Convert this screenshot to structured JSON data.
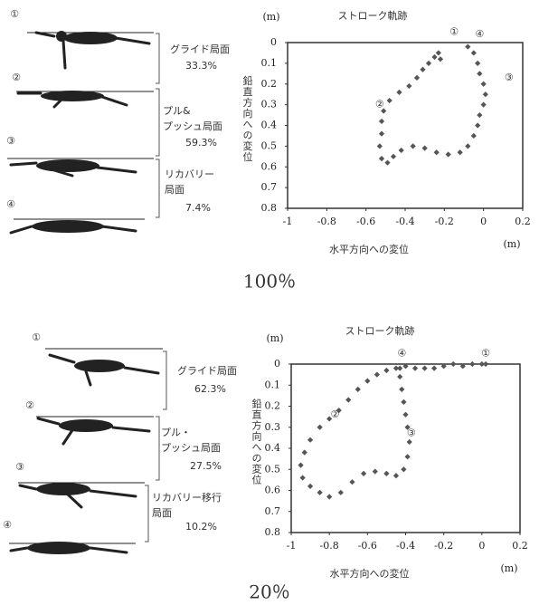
{
  "chart_data": [
    {
      "type": "scatter",
      "title": "ストローク軌跡",
      "x_label": "水平方向への変位",
      "y_label": "鉛直方向への変位",
      "x_unit": "(m)",
      "y_unit": "(m)",
      "color": "#555",
      "xlim": [
        -1,
        0.2
      ],
      "ylim": [
        0.8,
        0
      ],
      "xticks": [
        -1,
        -0.8,
        -0.6,
        -0.4,
        -0.2,
        0,
        0.2
      ],
      "yticks": [
        0,
        0.1,
        0.2,
        0.3,
        0.4,
        0.5,
        0.6,
        0.7,
        0.8
      ],
      "x": [
        -0.08,
        -0.05,
        -0.03,
        -0.02,
        0,
        0.01,
        0,
        -0.02,
        -0.03,
        -0.05,
        -0.08,
        -0.12,
        -0.18,
        -0.24,
        -0.3,
        -0.36,
        -0.42,
        -0.46,
        -0.49,
        -0.52,
        -0.53,
        -0.52,
        -0.52,
        -0.51,
        -0.48,
        -0.43,
        -0.38,
        -0.34,
        -0.31,
        -0.28,
        -0.25,
        -0.23,
        -0.22
      ],
      "y": [
        0.02,
        0.05,
        0.1,
        0.15,
        0.2,
        0.25,
        0.3,
        0.35,
        0.4,
        0.45,
        0.5,
        0.53,
        0.54,
        0.53,
        0.51,
        0.5,
        0.52,
        0.55,
        0.58,
        0.56,
        0.5,
        0.44,
        0.38,
        0.33,
        0.28,
        0.24,
        0.21,
        0.17,
        0.13,
        0.1,
        0.07,
        0.05,
        0.08
      ],
      "annotations": [
        {
          "label": "①",
          "x": -0.15,
          "y": -0.05
        },
        {
          "label": "④",
          "x": -0.02,
          "y": -0.04
        },
        {
          "label": "③",
          "x": 0.13,
          "y": 0.17
        },
        {
          "label": "②",
          "x": -0.53,
          "y": 0.3
        }
      ]
    },
    {
      "type": "scatter",
      "title": "ストローク軌跡",
      "x_label": "水平方向への変位",
      "y_label": "鉛直方向への変位",
      "x_unit": "(m)",
      "y_unit": "(m)",
      "color": "#555",
      "xlim": [
        -1,
        0.2
      ],
      "ylim": [
        0.8,
        0
      ],
      "xticks": [
        -1,
        -0.8,
        -0.6,
        -0.4,
        -0.2,
        0,
        0.2
      ],
      "yticks": [
        0,
        0.1,
        0.2,
        0.3,
        0.4,
        0.5,
        0.6,
        0.7,
        0.8
      ],
      "x": [
        0.02,
        0,
        -0.05,
        -0.1,
        -0.15,
        -0.2,
        -0.25,
        -0.3,
        -0.35,
        -0.4,
        -0.45,
        -0.5,
        -0.55,
        -0.6,
        -0.65,
        -0.7,
        -0.75,
        -0.8,
        -0.85,
        -0.9,
        -0.93,
        -0.95,
        -0.94,
        -0.9,
        -0.85,
        -0.8,
        -0.74,
        -0.68,
        -0.62,
        -0.56,
        -0.5,
        -0.45,
        -0.41,
        -0.39,
        -0.38,
        -0.39,
        -0.4,
        -0.41,
        -0.42,
        -0.43,
        -0.43
      ],
      "y": [
        0,
        0,
        0,
        0.01,
        0,
        0.01,
        0.02,
        0.02,
        0.02,
        0.01,
        0.02,
        0.03,
        0.05,
        0.08,
        0.12,
        0.17,
        0.22,
        0.26,
        0.3,
        0.36,
        0.42,
        0.48,
        0.54,
        0.58,
        0.61,
        0.63,
        0.61,
        0.56,
        0.52,
        0.51,
        0.52,
        0.53,
        0.5,
        0.44,
        0.37,
        0.3,
        0.24,
        0.18,
        0.12,
        0.06,
        0.02
      ],
      "annotations": [
        {
          "label": "①",
          "x": 0.02,
          "y": -0.05
        },
        {
          "label": "②",
          "x": -0.77,
          "y": 0.24
        },
        {
          "label": "③",
          "x": -0.37,
          "y": 0.33
        },
        {
          "label": "④",
          "x": -0.42,
          "y": -0.05
        }
      ]
    }
  ],
  "panels": [
    {
      "caption": "100％",
      "markers": [
        "①",
        "②",
        "③",
        "④"
      ],
      "phases": [
        {
          "lines": [
            "グライド局面"
          ],
          "percent": "33.3%"
        },
        {
          "lines": [
            "プル&",
            "プッシュ局面"
          ],
          "percent": "59.3%"
        },
        {
          "lines": [
            "リカバリー",
            "局面"
          ],
          "percent": "7.4%"
        }
      ]
    },
    {
      "caption": "20％",
      "markers": [
        "①",
        "②",
        "③",
        "④"
      ],
      "phases": [
        {
          "lines": [
            "グライド局面"
          ],
          "percent": "62.3%"
        },
        {
          "lines": [
            "プル・",
            "プッシュ局面"
          ],
          "percent": "27.5%"
        },
        {
          "lines": [
            "リカバリー移行",
            "局面"
          ],
          "percent": "10.2%"
        }
      ]
    }
  ]
}
